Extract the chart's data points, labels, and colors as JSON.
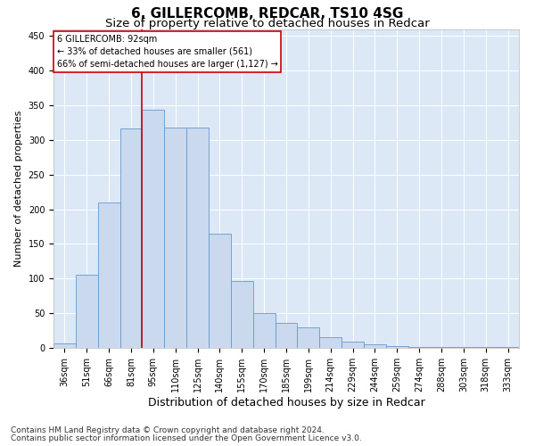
{
  "title1": "6, GILLERCOMB, REDCAR, TS10 4SG",
  "title2": "Size of property relative to detached houses in Redcar",
  "xlabel": "Distribution of detached houses by size in Redcar",
  "ylabel": "Number of detached properties",
  "categories": [
    "36sqm",
    "51sqm",
    "66sqm",
    "81sqm",
    "95sqm",
    "110sqm",
    "125sqm",
    "140sqm",
    "155sqm",
    "170sqm",
    "185sqm",
    "199sqm",
    "214sqm",
    "229sqm",
    "244sqm",
    "259sqm",
    "274sqm",
    "288sqm",
    "303sqm",
    "318sqm",
    "333sqm"
  ],
  "bar_heights": [
    7,
    106,
    210,
    316,
    344,
    318,
    318,
    165,
    97,
    50,
    36,
    29,
    15,
    9,
    5,
    2,
    1,
    1,
    1,
    1,
    1
  ],
  "bar_color": "#cad9ed",
  "bar_edge_color": "#6699cc",
  "vline_x": 4.0,
  "vline_color": "#cc0000",
  "annotation_line1": "6 GILLERCOMB: 92sqm",
  "annotation_line2": "← 33% of detached houses are smaller (561)",
  "annotation_line3": "66% of semi-detached houses are larger (1,127) →",
  "annotation_box_color": "#ffffff",
  "annotation_box_edge": "#cc0000",
  "ylim": [
    0,
    460
  ],
  "yticks": [
    0,
    50,
    100,
    150,
    200,
    250,
    300,
    350,
    400,
    450
  ],
  "footer1": "Contains HM Land Registry data © Crown copyright and database right 2024.",
  "footer2": "Contains public sector information licensed under the Open Government Licence v3.0.",
  "bg_color": "#dce8f5",
  "fig_bg_color": "#ffffff",
  "title1_fontsize": 11,
  "title2_fontsize": 9.5,
  "xlabel_fontsize": 9,
  "ylabel_fontsize": 8,
  "tick_fontsize": 7,
  "footer_fontsize": 6.5
}
